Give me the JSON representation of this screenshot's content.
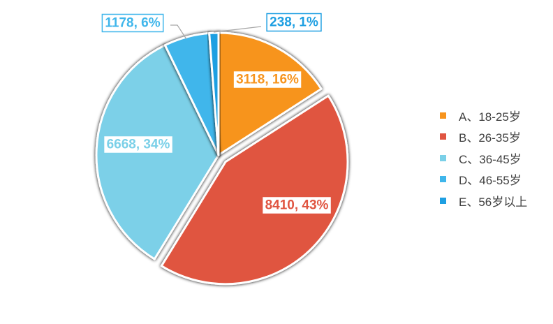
{
  "chart_data": {
    "type": "pie",
    "title": "",
    "categories": [
      "A、18-25岁",
      "B、26-35岁",
      "C、36-45岁",
      "D、46-55岁",
      "E、56岁以上"
    ],
    "values": [
      3118,
      8410,
      6668,
      1178,
      238
    ],
    "percent_labels": [
      "16%",
      "43%",
      "34%",
      "6%",
      "1%"
    ],
    "data_labels": [
      "3118, 16%",
      "8410, 43%",
      "6668, 34%",
      "1178, 6%",
      "238, 1%"
    ],
    "colors": [
      "#F7941D",
      "#E05541",
      "#7BD0E8",
      "#3FB6EB",
      "#1E9FE2"
    ],
    "exploded_slice": "B、26-35岁",
    "legend_position": "right"
  }
}
